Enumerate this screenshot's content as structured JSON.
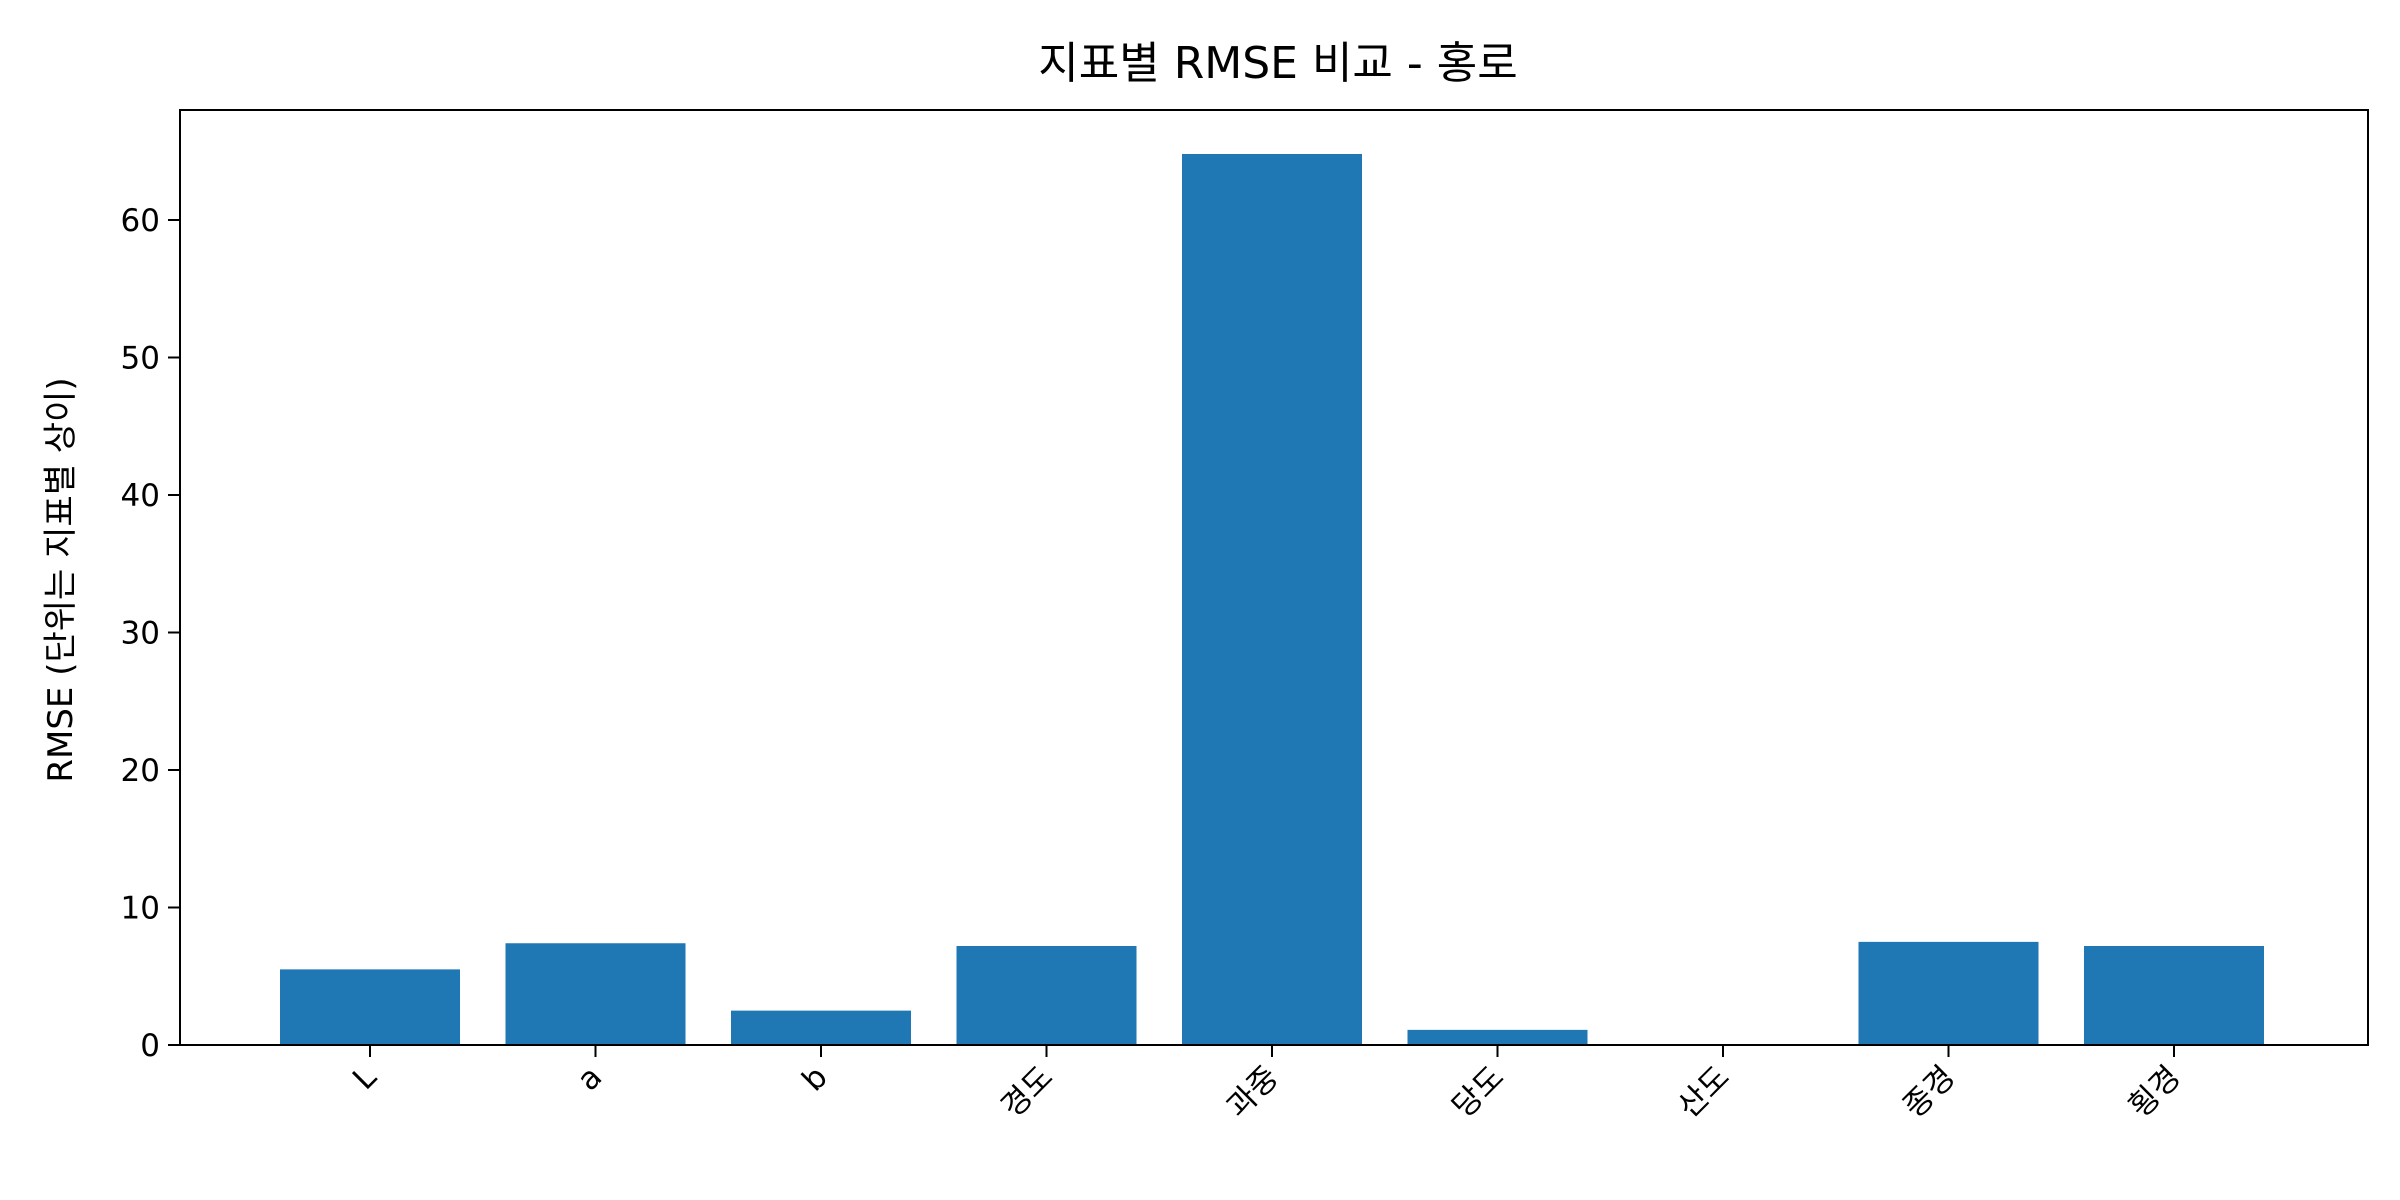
{
  "chart_data": {
    "type": "bar",
    "title": "지표별 RMSE 비교 - 홍로",
    "xlabel": "",
    "ylabel": "RMSE (단위는 지표별 상이)",
    "categories": [
      "L",
      "a",
      "b",
      "경도",
      "과중",
      "당도",
      "산도",
      "종경",
      "횡경"
    ],
    "values": [
      5.5,
      7.4,
      2.5,
      7.2,
      64.8,
      1.1,
      0.0,
      7.5,
      7.2
    ],
    "ylim": [
      0,
      68
    ],
    "yticks": [
      0,
      10,
      20,
      30,
      40,
      50,
      60
    ],
    "bar_color": "#1f77b4",
    "grid": false,
    "legend": "none"
  }
}
